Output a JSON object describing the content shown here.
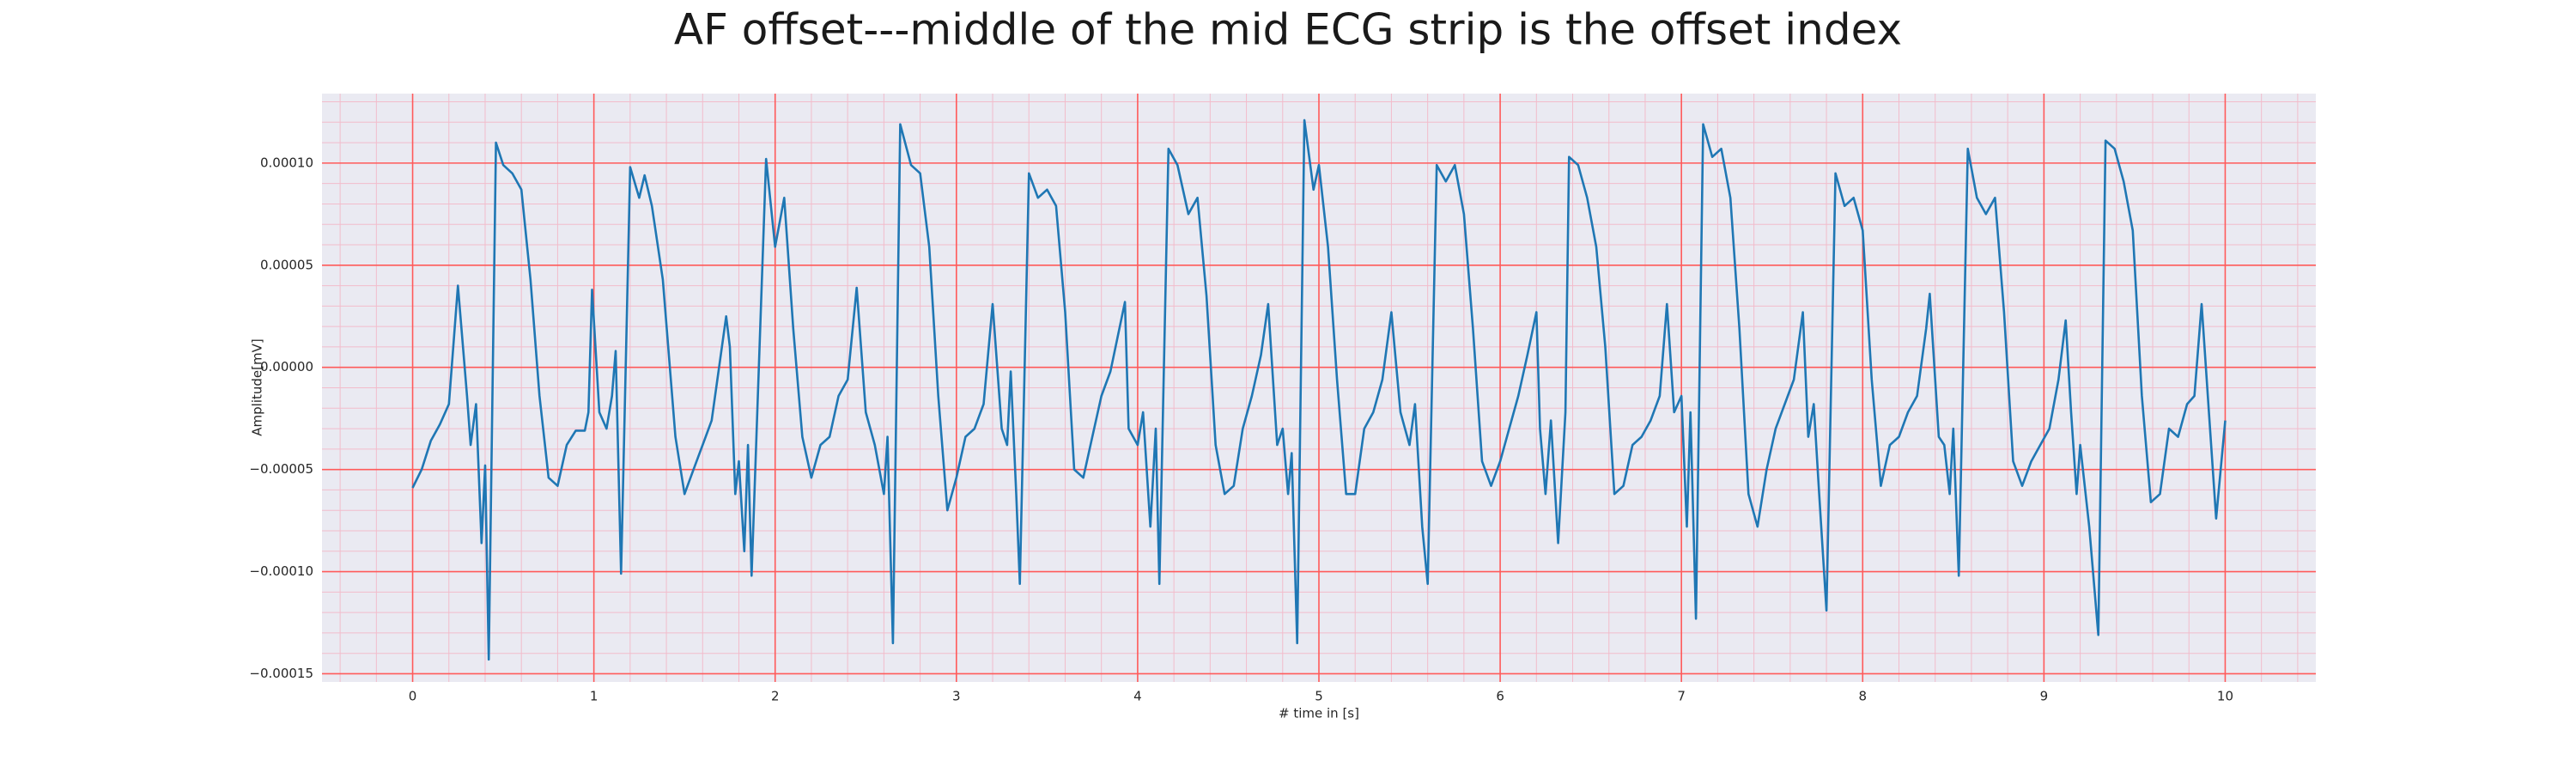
{
  "chart_data": {
    "type": "line",
    "title": "AF offset---middle of the mid ECG strip is the offset index",
    "xlabel": "# time in [s]",
    "ylabel": "Amplitude[mV]",
    "xlim": [
      -0.5,
      10.5
    ],
    "ylim": [
      -0.000154,
      0.000134
    ],
    "xticks": [
      0,
      1,
      2,
      3,
      4,
      5,
      6,
      7,
      8,
      9,
      10
    ],
    "yticks": [
      {
        "value": -0.00015,
        "label": "−0.00015"
      },
      {
        "value": -0.0001,
        "label": "−0.00010"
      },
      {
        "value": -5e-05,
        "label": "−0.00005"
      },
      {
        "value": 0,
        "label": "0.00000"
      },
      {
        "value": 5e-05,
        "label": "0.00005"
      },
      {
        "value": 0.0001,
        "label": "0.00010"
      }
    ],
    "grid": true,
    "minor_grid": true,
    "series": [
      {
        "color": "#1f77b4",
        "x": [
          0,
          0.05,
          0.1,
          0.15,
          0.2,
          0.25,
          0.3,
          0.32,
          0.35,
          0.38,
          0.4,
          0.42,
          0.46,
          0.5,
          0.55,
          0.6,
          0.65,
          0.7,
          0.75,
          0.8,
          0.85,
          0.9,
          0.95,
          0.97,
          0.99,
          1.03,
          1.07,
          1.1,
          1.12,
          1.15,
          1.2,
          1.25,
          1.28,
          1.32,
          1.38,
          1.45,
          1.5,
          1.55,
          1.6,
          1.65,
          1.73,
          1.75,
          1.78,
          1.8,
          1.83,
          1.85,
          1.87,
          1.95,
          2.0,
          2.05,
          2.1,
          2.15,
          2.2,
          2.25,
          2.3,
          2.35,
          2.4,
          2.45,
          2.5,
          2.55,
          2.6,
          2.62,
          2.65,
          2.69,
          2.75,
          2.8,
          2.85,
          2.9,
          2.95,
          3.0,
          3.05,
          3.1,
          3.15,
          3.2,
          3.25,
          3.28,
          3.3,
          3.33,
          3.35,
          3.4,
          3.45,
          3.5,
          3.55,
          3.6,
          3.65,
          3.7,
          3.75,
          3.8,
          3.85,
          3.93,
          3.95,
          4.0,
          4.03,
          4.07,
          4.1,
          4.12,
          4.17,
          4.22,
          4.28,
          4.33,
          4.38,
          4.43,
          4.48,
          4.53,
          4.58,
          4.63,
          4.68,
          4.72,
          4.77,
          4.8,
          4.83,
          4.85,
          4.88,
          4.92,
          4.97,
          5.0,
          5.05,
          5.1,
          5.15,
          5.2,
          5.25,
          5.3,
          5.35,
          5.4,
          5.45,
          5.5,
          5.53,
          5.57,
          5.6,
          5.65,
          5.7,
          5.75,
          5.8,
          5.85,
          5.9,
          5.95,
          6.0,
          6.05,
          6.1,
          6.15,
          6.2,
          6.22,
          6.25,
          6.28,
          6.32,
          6.36,
          6.38,
          6.43,
          6.48,
          6.53,
          6.58,
          6.63,
          6.68,
          6.73,
          6.78,
          6.83,
          6.88,
          6.92,
          6.96,
          7.0,
          7.03,
          7.05,
          7.08,
          7.12,
          7.17,
          7.22,
          7.27,
          7.32,
          7.37,
          7.42,
          7.47,
          7.52,
          7.57,
          7.62,
          7.67,
          7.7,
          7.73,
          7.76,
          7.8,
          7.85,
          7.9,
          7.95,
          8.0,
          8.05,
          8.1,
          8.15,
          8.2,
          8.25,
          8.3,
          8.35,
          8.37,
          8.42,
          8.45,
          8.48,
          8.5,
          8.53,
          8.58,
          8.63,
          8.68,
          8.73,
          8.78,
          8.83,
          8.88,
          8.93,
          8.98,
          9.03,
          9.08,
          9.12,
          9.15,
          9.18,
          9.2,
          9.25,
          9.3,
          9.34,
          9.39,
          9.44,
          9.49,
          9.54,
          9.59,
          9.64,
          9.69,
          9.74,
          9.79,
          9.83,
          9.87,
          9.91,
          9.95,
          10.0
        ],
        "values": [
          -5.9e-05,
          -5e-05,
          -3.6e-05,
          -2.8e-05,
          -1.8e-05,
          4e-05,
          -1.4e-05,
          -3.8e-05,
          -1.8e-05,
          -8.6e-05,
          -4.8e-05,
          -0.000143,
          0.00011,
          9.9e-05,
          9.5e-05,
          8.7e-05,
          4.3e-05,
          -1.4e-05,
          -5.4e-05,
          -5.8e-05,
          -3.8e-05,
          -3.1e-05,
          -3.1e-05,
          -2.2e-05,
          3.8e-05,
          -2.2e-05,
          -3e-05,
          -1.4e-05,
          8e-06,
          -0.000101,
          9.8e-05,
          8.3e-05,
          9.4e-05,
          7.9e-05,
          4.3e-05,
          -3.4e-05,
          -6.2e-05,
          -5e-05,
          -3.8e-05,
          -2.6e-05,
          2.5e-05,
          1e-05,
          -6.2e-05,
          -4.6e-05,
          -9e-05,
          -3.8e-05,
          -0.000102,
          0.000102,
          5.9e-05,
          8.3e-05,
          1.9e-05,
          -3.4e-05,
          -5.4e-05,
          -3.8e-05,
          -3.4e-05,
          -1.4e-05,
          -6e-06,
          3.9e-05,
          -2.2e-05,
          -3.8e-05,
          -6.2e-05,
          -3.4e-05,
          -0.000135,
          0.000119,
          9.9e-05,
          9.5e-05,
          5.9e-05,
          -1.4e-05,
          -7e-05,
          -5.4e-05,
          -3.4e-05,
          -3e-05,
          -1.8e-05,
          3.1e-05,
          -3e-05,
          -3.8e-05,
          -2e-06,
          -6.2e-05,
          -0.000106,
          9.5e-05,
          8.3e-05,
          8.7e-05,
          7.9e-05,
          2.7e-05,
          -5e-05,
          -5.4e-05,
          -3.4e-05,
          -1.4e-05,
          -2e-06,
          3.2e-05,
          -3e-05,
          -3.8e-05,
          -2.2e-05,
          -7.8e-05,
          -3e-05,
          -0.000106,
          0.000107,
          9.9e-05,
          7.5e-05,
          8.3e-05,
          3.5e-05,
          -3.8e-05,
          -6.2e-05,
          -5.8e-05,
          -3e-05,
          -1.4e-05,
          6e-06,
          3.1e-05,
          -3.8e-05,
          -3e-05,
          -6.2e-05,
          -4.2e-05,
          -0.000135,
          0.000121,
          8.7e-05,
          9.9e-05,
          5.9e-05,
          -6e-06,
          -6.2e-05,
          -6.2e-05,
          -3e-05,
          -2.2e-05,
          -6e-06,
          2.7e-05,
          -2.2e-05,
          -3.8e-05,
          -1.8e-05,
          -7.8e-05,
          -0.000106,
          9.9e-05,
          9.1e-05,
          9.9e-05,
          7.5e-05,
          1.9e-05,
          -4.6e-05,
          -5.8e-05,
          -4.6e-05,
          -3e-05,
          -1.4e-05,
          6e-06,
          2.7e-05,
          -3e-05,
          -6.2e-05,
          -2.6e-05,
          -8.6e-05,
          -2.2e-05,
          0.000103,
          9.9e-05,
          8.3e-05,
          5.9e-05,
          1e-05,
          -6.2e-05,
          -5.8e-05,
          -3.8e-05,
          -3.4e-05,
          -2.6e-05,
          -1.4e-05,
          3.1e-05,
          -2.2e-05,
          -1.4e-05,
          -7.8e-05,
          -2.2e-05,
          -0.000123,
          0.000119,
          0.000103,
          0.000107,
          8.3e-05,
          1.9e-05,
          -6.2e-05,
          -7.8e-05,
          -5e-05,
          -3e-05,
          -1.8e-05,
          -6e-06,
          2.7e-05,
          -3.4e-05,
          -1.8e-05,
          -6.2e-05,
          -0.000119,
          9.5e-05,
          7.9e-05,
          8.3e-05,
          6.7e-05,
          -6e-06,
          -5.8e-05,
          -3.8e-05,
          -3.4e-05,
          -2.2e-05,
          -1.4e-05,
          1.9e-05,
          3.6e-05,
          -3.4e-05,
          -3.8e-05,
          -6.2e-05,
          -3e-05,
          -0.000102,
          0.000107,
          8.3e-05,
          7.5e-05,
          8.3e-05,
          2.7e-05,
          -4.6e-05,
          -5.8e-05,
          -4.6e-05,
          -3.8e-05,
          -3e-05,
          -6e-06,
          2.3e-05,
          -2.2e-05,
          -6.2e-05,
          -3.8e-05,
          -7.8e-05,
          -0.000131,
          0.000111,
          0.000107,
          9.1e-05,
          6.7e-05,
          -1.4e-05,
          -6.6e-05,
          -6.2e-05,
          -3e-05,
          -3.4e-05,
          -1.8e-05,
          -1.4e-05,
          3.1e-05,
          -2.2e-05,
          -7.4e-05,
          -2.6e-05
        ]
      }
    ]
  }
}
